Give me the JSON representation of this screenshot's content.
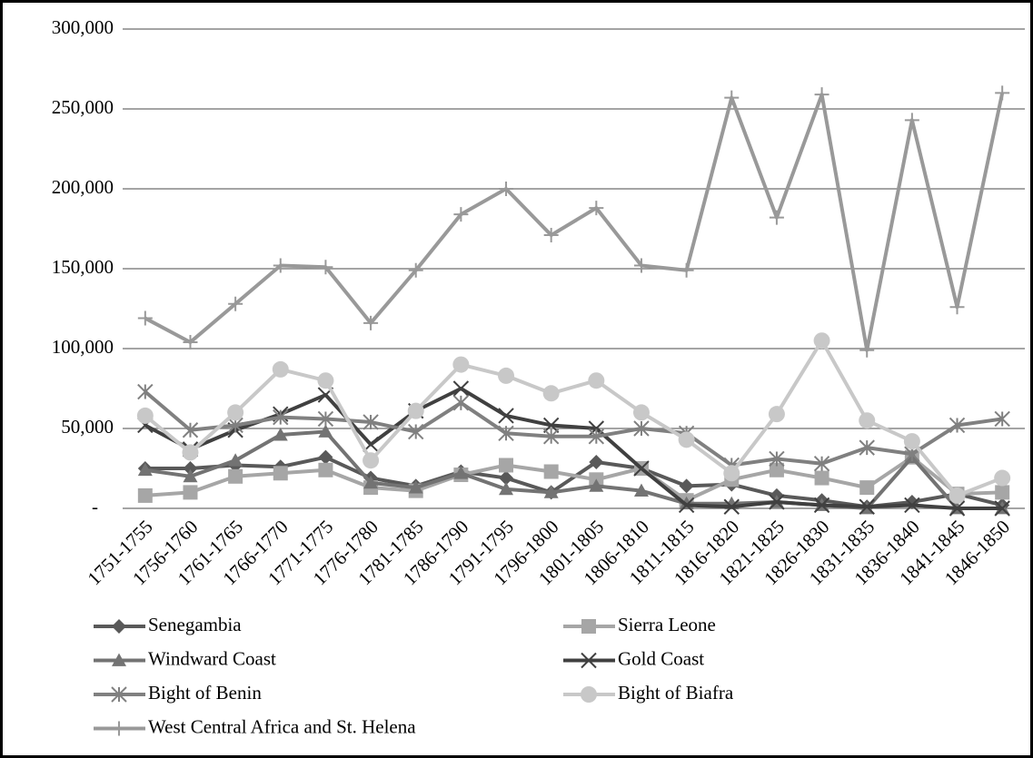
{
  "chart_data": {
    "type": "line",
    "categories": [
      "1751-1755",
      "1756-1760",
      "1761-1765",
      "1766-1770",
      "1771-1775",
      "1776-1780",
      "1781-1785",
      "1786-1790",
      "1791-1795",
      "1796-1800",
      "1801-1805",
      "1806-1810",
      "1811-1815",
      "1816-1820",
      "1821-1825",
      "1826-1830",
      "1831-1835",
      "1836-1840",
      "1841-1845",
      "1846-1850"
    ],
    "ylim": [
      0,
      300000
    ],
    "yticks": [
      {
        "value": 0,
        "label": "-"
      },
      {
        "value": 50000,
        "label": "50,000"
      },
      {
        "value": 100000,
        "label": "100,000"
      },
      {
        "value": 150000,
        "label": "150,000"
      },
      {
        "value": 200000,
        "label": "200,000"
      },
      {
        "value": 250000,
        "label": "250,000"
      },
      {
        "value": 300000,
        "label": "300,000"
      }
    ],
    "grid": true,
    "legend": "bottom",
    "series": [
      {
        "name": "Senegambia",
        "color": "#595959",
        "marker": "diamond",
        "values": [
          25000,
          25000,
          27000,
          26000,
          32000,
          19000,
          14000,
          23000,
          19000,
          10000,
          29000,
          25000,
          14000,
          15000,
          8000,
          5000,
          1000,
          4000,
          9000,
          2000
        ]
      },
      {
        "name": "Sierra Leone",
        "color": "#a6a6a6",
        "marker": "square",
        "values": [
          8000,
          10000,
          20000,
          22000,
          24000,
          13000,
          11000,
          21000,
          27000,
          23000,
          18000,
          25000,
          5000,
          18000,
          24000,
          19000,
          13000,
          32000,
          9000,
          10000
        ]
      },
      {
        "name": "Windward Coast",
        "color": "#737373",
        "marker": "triangle",
        "values": [
          24000,
          20000,
          30000,
          46000,
          48000,
          16000,
          13000,
          22000,
          12000,
          10000,
          14000,
          11000,
          3000,
          3000,
          4000,
          2000,
          0,
          32000,
          0,
          0
        ]
      },
      {
        "name": "Gold Coast",
        "color": "#404040",
        "marker": "x",
        "values": [
          52000,
          37000,
          49000,
          59000,
          71000,
          40000,
          61000,
          75000,
          58000,
          52000,
          50000,
          25000,
          2000,
          1000,
          4000,
          2000,
          1000,
          2000,
          0,
          0
        ]
      },
      {
        "name": "Bight of Benin",
        "color": "#808080",
        "marker": "star",
        "values": [
          73000,
          49000,
          52000,
          57000,
          56000,
          54000,
          48000,
          66000,
          47000,
          45000,
          45000,
          50000,
          47000,
          27000,
          31000,
          28000,
          38000,
          34000,
          52000,
          56000
        ]
      },
      {
        "name": "Bight of Biafra",
        "color": "#c8c8c8",
        "marker": "circle",
        "values": [
          58000,
          35000,
          60000,
          87000,
          80000,
          30000,
          61000,
          90000,
          83000,
          72000,
          80000,
          60000,
          43000,
          22000,
          59000,
          105000,
          55000,
          42000,
          8000,
          19000
        ]
      },
      {
        "name": "West Central Africa and St. Helena",
        "color": "#999999",
        "marker": "plus",
        "values": [
          119000,
          104000,
          128000,
          152000,
          151000,
          116000,
          149000,
          184000,
          200000,
          171000,
          188000,
          152000,
          149000,
          257000,
          182000,
          259000,
          99000,
          243000,
          126000,
          260000
        ]
      }
    ]
  }
}
